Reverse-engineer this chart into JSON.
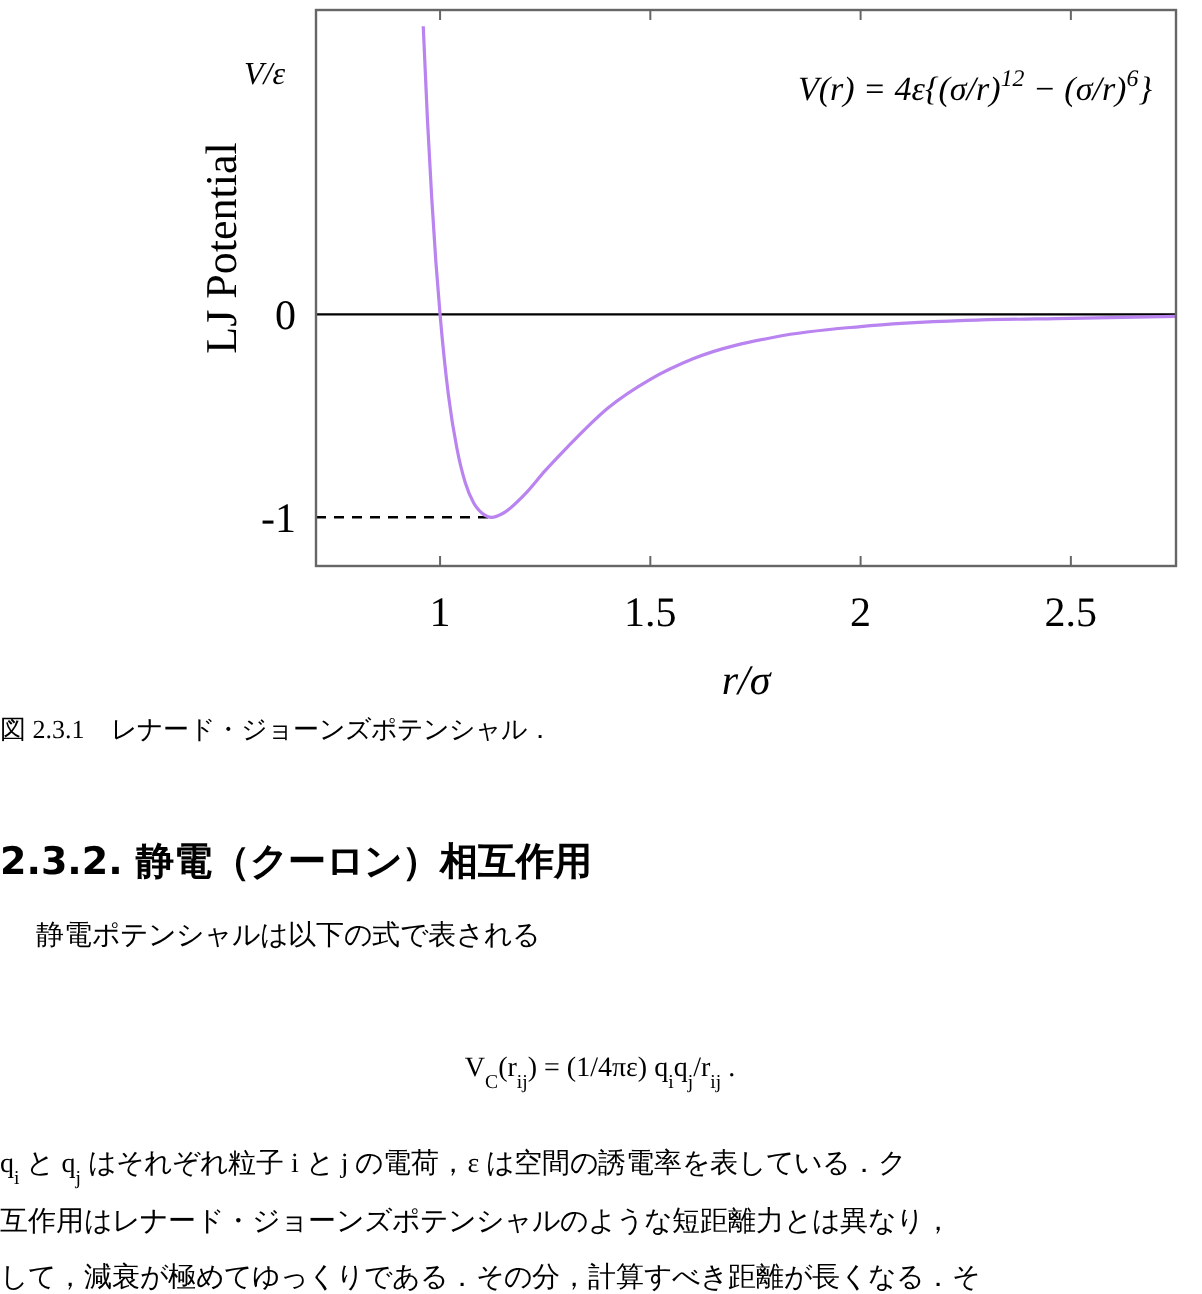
{
  "chart_data": {
    "type": "line",
    "xlabel": "r/σ",
    "ylabel": "LJ Potential",
    "x": [
      0.96,
      0.97,
      0.98,
      0.99,
      1.0,
      1.02,
      1.04,
      1.06,
      1.08,
      1.1,
      1.1225,
      1.15,
      1.2,
      1.25,
      1.3,
      1.4,
      1.5,
      1.6,
      1.8,
      2.0,
      2.25,
      2.5,
      2.75
    ],
    "series": [
      {
        "color": "#b983f0",
        "values": [
          1.42,
          0.96,
          0.58,
          0.26,
          0,
          -0.4,
          -0.66,
          -0.83,
          -0.93,
          -0.98,
          -1.0,
          -0.98,
          -0.89,
          -0.77,
          -0.66,
          -0.46,
          -0.32,
          -0.22,
          -0.11,
          -0.06,
          -0.03,
          -0.02,
          -0.01
        ]
      }
    ],
    "xlim": [
      0.705,
      2.75
    ],
    "ylim": [
      -1.24,
      1.5
    ],
    "xticks": [
      1,
      1.5,
      2,
      2.5
    ],
    "yticks": [
      0,
      -1
    ],
    "grid": false,
    "marker": "none",
    "line_style": "solid",
    "ref_lines": [
      {
        "axis": "y",
        "value": 0,
        "color": "#000000",
        "line_style": "solid"
      },
      {
        "axis": "y",
        "value": -1,
        "color": "#000000",
        "line_style": "dashed"
      }
    ],
    "annotations": [
      "V/ε",
      "V(r) = 4ε{(σ/r)$^{12}$ − (σ/r)$^{6}$}",
      "図 2.3.1　レナード・ジョーンズポテンシャル．",
      "2.3.2.  静電（クーロン）相互作用",
      "静電ポテンシャルは以下の式で表される",
      "V$_{C}$(r$_{ij}$) = (1/4πε) q$_{i}$q$_{j}$/r$_{ij}$ .",
      "q$_{i}$ と q$_{j}$ はそれぞれ粒子 i と j の電荷，ε は空間の誘電率を表している．ク",
      "互作用はレナード・ジョーンズポテンシャルのような短距離力とは異なり，",
      "して，減衰が極めてゆっくりである．その分，計算すべき距離が長くなる．そ"
    ]
  }
}
